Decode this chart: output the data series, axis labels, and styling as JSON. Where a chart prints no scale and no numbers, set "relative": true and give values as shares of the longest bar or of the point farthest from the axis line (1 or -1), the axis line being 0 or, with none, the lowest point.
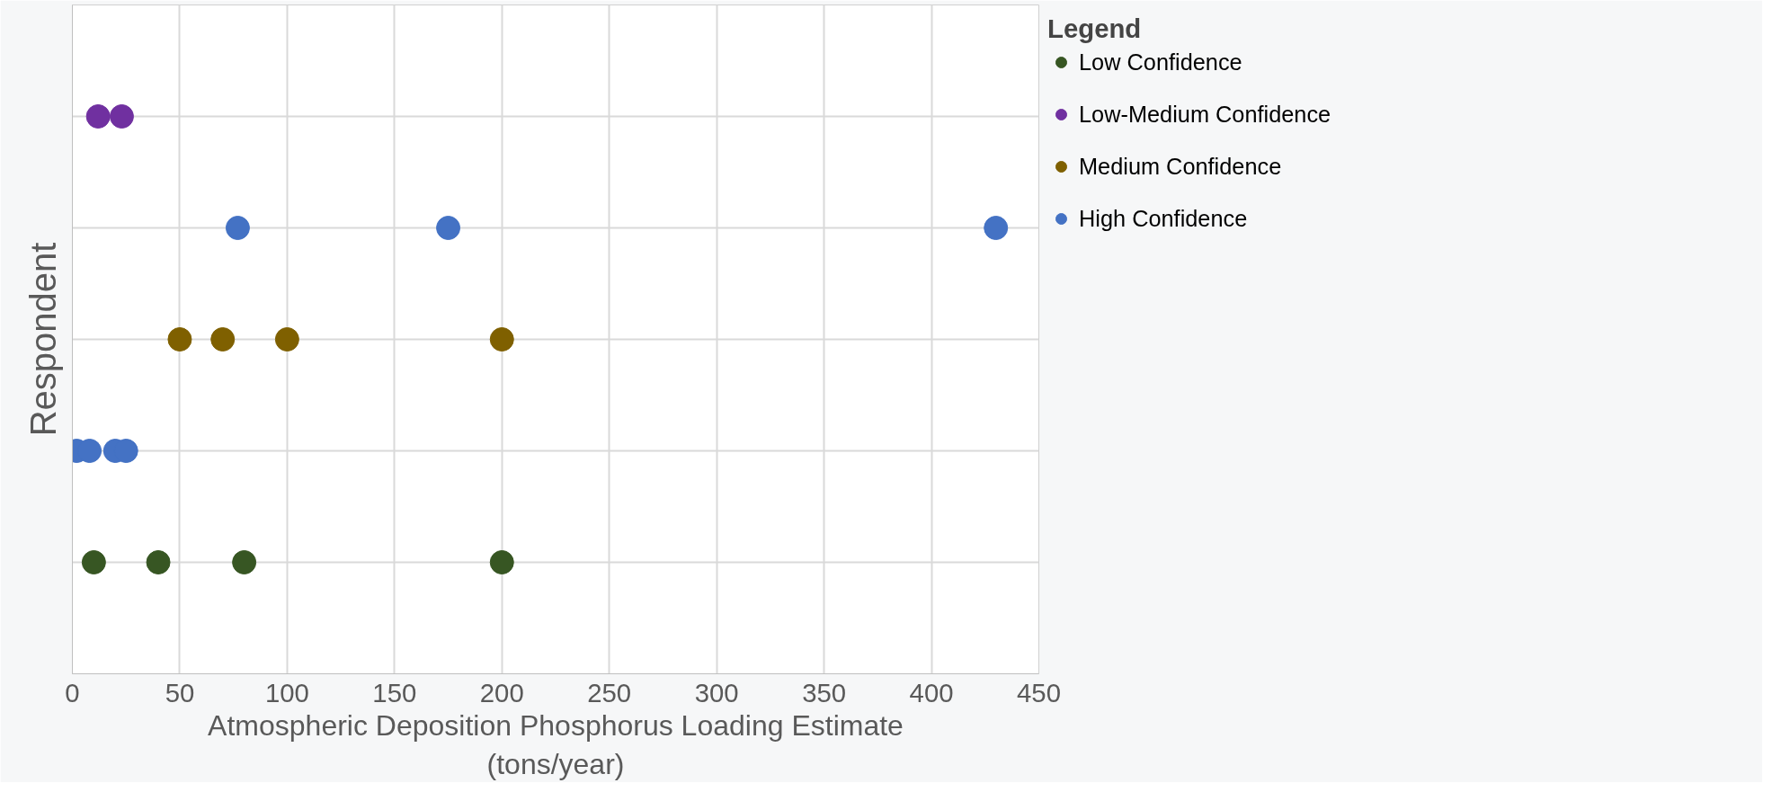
{
  "chart_data": {
    "type": "scatter",
    "xlabel": "Atmospheric Deposition Phosphorus Loading Estimate (tons/year)",
    "ylabel": "Respondent",
    "legend_title": "Legend",
    "xlim": [
      0,
      450
    ],
    "xticks": [
      0,
      50,
      100,
      150,
      200,
      250,
      300,
      350,
      400,
      450
    ],
    "relative": true,
    "tick_labels": "x",
    "grid": true,
    "legend": "right",
    "marker": "circle",
    "series": [
      {
        "name": "Low Confidence",
        "color": "#375623",
        "x": [
          10,
          40,
          80,
          200
        ],
        "values": [
          0.2,
          0.2,
          0.2,
          0.2
        ]
      },
      {
        "name": "Low-Medium Confidence",
        "color": "#7030a0",
        "x": [
          12,
          23
        ],
        "values": [
          1,
          1
        ]
      },
      {
        "name": "Medium Confidence",
        "color": "#7f6000",
        "x": [
          50,
          70,
          100,
          200
        ],
        "values": [
          0.6,
          0.6,
          0.6,
          0.6
        ]
      },
      {
        "name": "High Confidence",
        "color": "#4472c4",
        "x": [
          2,
          8,
          20,
          25,
          77,
          175,
          430
        ],
        "values": [
          0.4,
          0.4,
          0.4,
          0.4,
          0.8,
          0.8,
          0.8
        ]
      }
    ]
  }
}
